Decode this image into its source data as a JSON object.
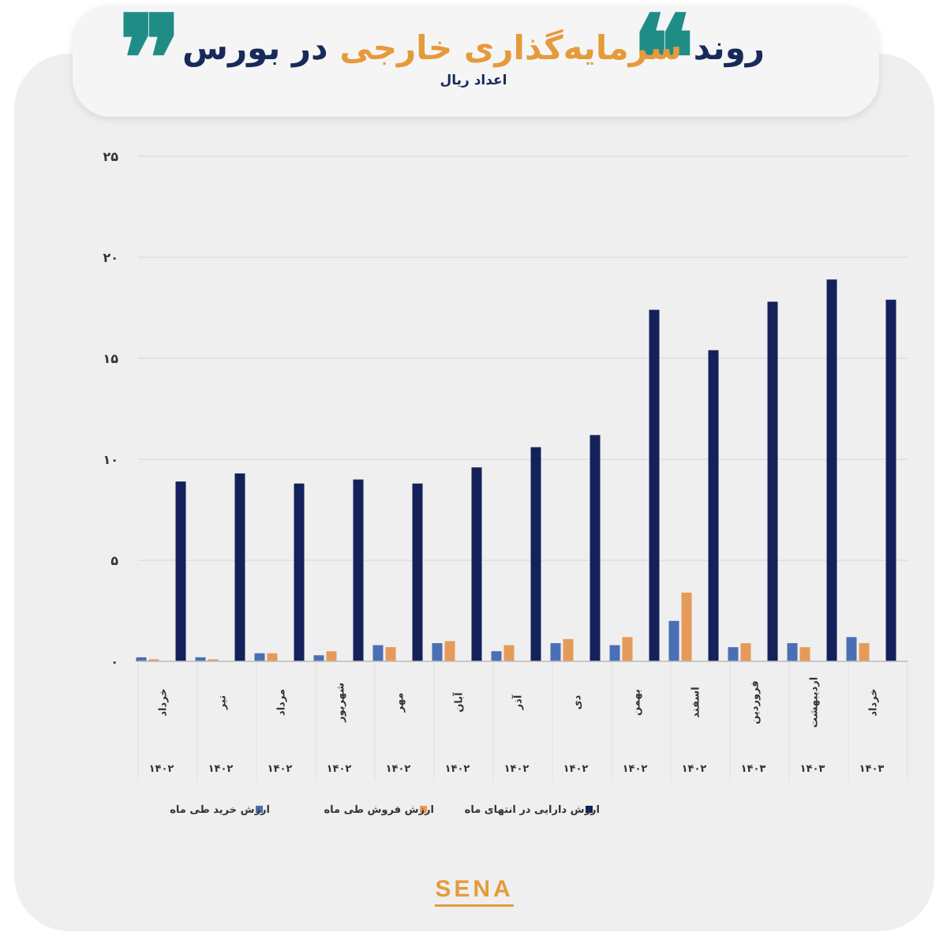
{
  "header": {
    "title_part1": "روند",
    "title_accent": "سرمایه‌گذاری خارجی",
    "title_part2": "در بورس",
    "subtitle": "اعداد ریال",
    "quote_open": "❞",
    "quote_close": "❝"
  },
  "brand": {
    "logo_text": "SENA"
  },
  "colors": {
    "buy": "#4a6fb5",
    "sell": "#e69a5a",
    "holding": "#14215a",
    "accent": "#e69a3c",
    "teal": "#1f8d86"
  },
  "chart_data": {
    "type": "bar",
    "y_tick_labels": [
      "۲۵",
      "۲۰",
      "۱۵",
      "۱۰",
      "۵",
      "۰"
    ],
    "y_ticks": [
      25,
      20,
      15,
      10,
      5,
      0
    ],
    "ylim": [
      0,
      25
    ],
    "categories": [
      "خرداد",
      "تیر",
      "مرداد",
      "شهریور",
      "مهر",
      "آبان",
      "آذر",
      "دی",
      "بهمن",
      "اسفند",
      "فروردین",
      "اردیبهشت",
      "خرداد"
    ],
    "category_years": [
      "۱۴۰۲",
      "۱۴۰۲",
      "۱۴۰۲",
      "۱۴۰۲",
      "۱۴۰۲",
      "۱۴۰۲",
      "۱۴۰۲",
      "۱۴۰۲",
      "۱۴۰۲",
      "۱۴۰۲",
      "۱۴۰۳",
      "۱۴۰۳",
      "۱۴۰۳"
    ],
    "series": [
      {
        "name": "ارزش خرید طی ماه",
        "color": "#4a6fb5",
        "values": [
          0.2,
          0.2,
          0.4,
          0.3,
          0.8,
          0.9,
          0.5,
          0.9,
          0.8,
          2.0,
          0.7,
          0.9,
          1.2
        ]
      },
      {
        "name": "ارزش فروش طی ماه",
        "color": "#e69a5a",
        "values": [
          0.1,
          0.1,
          0.4,
          0.5,
          0.7,
          1.0,
          0.8,
          1.1,
          1.2,
          3.4,
          0.9,
          0.7,
          0.9
        ]
      },
      {
        "name": "ارزش دارایی در انتهای ماه",
        "color": "#14215a",
        "values": [
          8.9,
          9.3,
          8.8,
          9.0,
          8.8,
          9.6,
          10.6,
          11.2,
          17.4,
          15.4,
          17.8,
          18.9,
          17.9
        ]
      }
    ],
    "legend_position": "bottom",
    "grid": true
  }
}
